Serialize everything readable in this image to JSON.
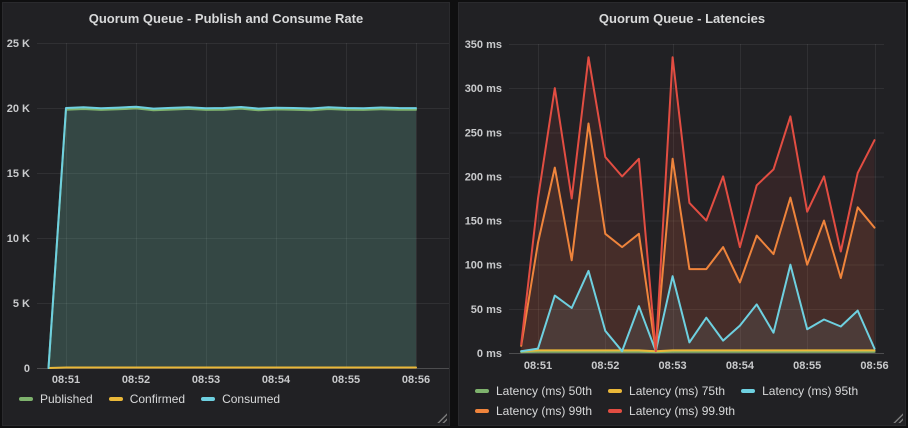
{
  "colors": {
    "page_bg": "#0f0f10",
    "panel_bg": "#212124",
    "title_text": "#d8d9da",
    "tick_text": "#c9cacc",
    "grid": "rgba(255,255,255,0.07)",
    "axis_line": "rgba(255,255,255,0.14)",
    "green": "#7EB26D",
    "yellow": "#EAB839",
    "cyan": "#6ED0E0",
    "orange": "#EF843C",
    "red": "#E24D42"
  },
  "chart_data": [
    {
      "type": "line",
      "title": "Quorum Queue - Publish and Consume Rate",
      "xlabel": "",
      "ylabel": "",
      "ylim": [
        0,
        25000
      ],
      "grid": true,
      "legend_position": "bottom",
      "x_ticks": [
        "08:51",
        "08:52",
        "08:53",
        "08:54",
        "08:55",
        "08:56"
      ],
      "y_ticks": [
        {
          "value": 0,
          "label": "0"
        },
        {
          "value": 5000,
          "label": "5 K"
        },
        {
          "value": 10000,
          "label": "10 K"
        },
        {
          "value": 15000,
          "label": "15 K"
        },
        {
          "value": 20000,
          "label": "20 K"
        },
        {
          "value": 25000,
          "label": "25 K"
        }
      ],
      "x_times": [
        "08:50:45",
        "08:51:00",
        "08:51:15",
        "08:51:30",
        "08:51:45",
        "08:52:00",
        "08:52:15",
        "08:52:30",
        "08:52:45",
        "08:53:00",
        "08:53:15",
        "08:53:30",
        "08:53:45",
        "08:54:00",
        "08:54:15",
        "08:54:30",
        "08:54:45",
        "08:55:00",
        "08:55:15",
        "08:55:30",
        "08:55:45",
        "08:56:00"
      ],
      "fill_opacity": 0.13,
      "series": [
        {
          "name": "Published",
          "color": "#7EB26D",
          "values": [
            0,
            19870,
            19920,
            19850,
            19900,
            19970,
            19820,
            19880,
            19930,
            19850,
            19870,
            19950,
            19820,
            19890,
            19870,
            19830,
            19920,
            19870,
            19850,
            19910,
            19870,
            19860
          ]
        },
        {
          "name": "Confirmed",
          "color": "#EAB839",
          "values": [
            0,
            40,
            40,
            40,
            40,
            40,
            40,
            40,
            40,
            40,
            40,
            40,
            40,
            40,
            40,
            40,
            40,
            40,
            40,
            40,
            40,
            40
          ]
        },
        {
          "name": "Consumed",
          "color": "#6ED0E0",
          "values": [
            0,
            20000,
            20050,
            19980,
            20030,
            20100,
            19950,
            20010,
            20060,
            19980,
            20000,
            20080,
            19950,
            20020,
            20000,
            19960,
            20050,
            20000,
            19980,
            20040,
            20000,
            19990
          ]
        }
      ]
    },
    {
      "type": "line",
      "title": "Quorum Queue - Latencies",
      "xlabel": "",
      "ylabel": "",
      "ylim": [
        0,
        350
      ],
      "grid": true,
      "legend_position": "bottom",
      "x_ticks": [
        "08:51",
        "08:52",
        "08:53",
        "08:54",
        "08:55",
        "08:56"
      ],
      "y_ticks": [
        {
          "value": 0,
          "label": "0 ms"
        },
        {
          "value": 50,
          "label": "50 ms"
        },
        {
          "value": 100,
          "label": "100 ms"
        },
        {
          "value": 150,
          "label": "150 ms"
        },
        {
          "value": 200,
          "label": "200 ms"
        },
        {
          "value": 250,
          "label": "250 ms"
        },
        {
          "value": 300,
          "label": "300 ms"
        },
        {
          "value": 350,
          "label": "350 ms"
        }
      ],
      "x_times": [
        "08:50:45",
        "08:51:00",
        "08:51:15",
        "08:51:30",
        "08:51:45",
        "08:52:00",
        "08:52:15",
        "08:52:30",
        "08:52:45",
        "08:53:00",
        "08:53:15",
        "08:53:30",
        "08:53:45",
        "08:54:00",
        "08:54:15",
        "08:54:30",
        "08:54:45",
        "08:55:00",
        "08:55:15",
        "08:55:30",
        "08:55:45",
        "08:56:00"
      ],
      "fill_opacity": 0.1,
      "series": [
        {
          "name": "Latency (ms) 50th",
          "color": "#7EB26D",
          "values": [
            1,
            1.5,
            1.5,
            1.5,
            1.5,
            1.5,
            1.5,
            1.5,
            1,
            1.5,
            1.5,
            1.5,
            1.5,
            1.5,
            1.5,
            1.5,
            1.5,
            1.5,
            1.5,
            1.5,
            1.5,
            1.5
          ]
        },
        {
          "name": "Latency (ms) 75th",
          "color": "#EAB839",
          "values": [
            2,
            3,
            3,
            3,
            3,
            3,
            3,
            3,
            2,
            3,
            3,
            3,
            3,
            3,
            3,
            3,
            3,
            3,
            3,
            3,
            3,
            3
          ]
        },
        {
          "name": "Latency (ms) 95th",
          "color": "#6ED0E0",
          "values": [
            2,
            5,
            65,
            51,
            93,
            25,
            2,
            53,
            2,
            87,
            12,
            40,
            14,
            31,
            55,
            23,
            100,
            27,
            38,
            30,
            48,
            5
          ]
        },
        {
          "name": "Latency (ms) 99th",
          "color": "#EF843C",
          "values": [
            8,
            125,
            210,
            105,
            260,
            135,
            120,
            135,
            2,
            220,
            95,
            95,
            120,
            80,
            133,
            112,
            176,
            100,
            150,
            85,
            165,
            142
          ]
        },
        {
          "name": "Latency (ms) 99.9th",
          "color": "#E24D42",
          "values": [
            10,
            175,
            300,
            175,
            335,
            222,
            200,
            220,
            2,
            335,
            170,
            150,
            200,
            120,
            190,
            208,
            268,
            160,
            200,
            115,
            204,
            241
          ]
        }
      ]
    }
  ]
}
